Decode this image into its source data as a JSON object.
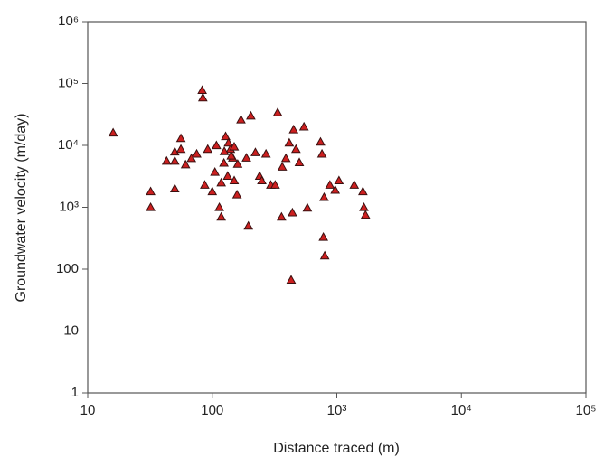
{
  "chart_data": {
    "type": "scatter",
    "x_label": "Distance traced  (m)",
    "y_label": "Groundwater velocity (m/day)",
    "x_scale": "log",
    "y_scale": "log",
    "marker": "triangle",
    "color": "#cc1f1f",
    "edge_color": "#3a1010",
    "xlim": [
      10,
      100000
    ],
    "xticks": [
      10,
      100,
      {
        "value": 1000,
        "label": "10³"
      },
      {
        "value": 10000,
        "label": "10⁴"
      },
      {
        "value": 100000,
        "label": "10⁵"
      }
    ],
    "ylim": [
      1,
      1000000
    ],
    "yticks": [
      1,
      10,
      100,
      {
        "value": 1000,
        "label": "10³"
      },
      {
        "value": 10000,
        "label": "10⁴"
      },
      {
        "value": 100000,
        "label": "10⁵"
      },
      {
        "value": 1000000,
        "label": "10⁶"
      }
    ],
    "x": [
      16,
      32,
      32,
      43,
      50,
      50,
      50,
      56,
      56,
      61,
      68,
      75,
      83,
      84,
      87,
      92,
      100,
      105,
      108,
      114,
      118,
      124,
      128,
      133,
      140,
      146,
      150,
      158,
      170,
      188,
      195,
      204,
      222,
      240,
      250,
      270,
      295,
      320,
      335,
      360,
      365,
      390,
      415,
      430,
      440,
      450,
      470,
      500,
      545,
      580,
      740,
      760,
      780,
      800,
      790,
      880,
      970,
      1040,
      1380,
      1620,
      1650,
      1700,
      135,
      142,
      150,
      125,
      118,
      160
    ],
    "values": [
      16000,
      1800,
      1000,
      5600,
      7900,
      5600,
      2000,
      13000,
      8700,
      4900,
      6200,
      7300,
      78000,
      59000,
      2300,
      8700,
      1800,
      3700,
      10000,
      1000,
      700,
      5200,
      14000,
      3200,
      8700,
      6300,
      2700,
      1600,
      26000,
      6300,
      500,
      30000,
      7700,
      3200,
      2700,
      7300,
      2300,
      2300,
      34000,
      700,
      4500,
      6200,
      11000,
      67,
      820,
      18000,
      8700,
      5300,
      20000,
      980,
      11400,
      7300,
      330,
      165,
      1450,
      2300,
      1900,
      2700,
      2300,
      1800,
      1000,
      750,
      11000,
      6800,
      9500,
      8000,
      2500,
      5000
    ]
  }
}
